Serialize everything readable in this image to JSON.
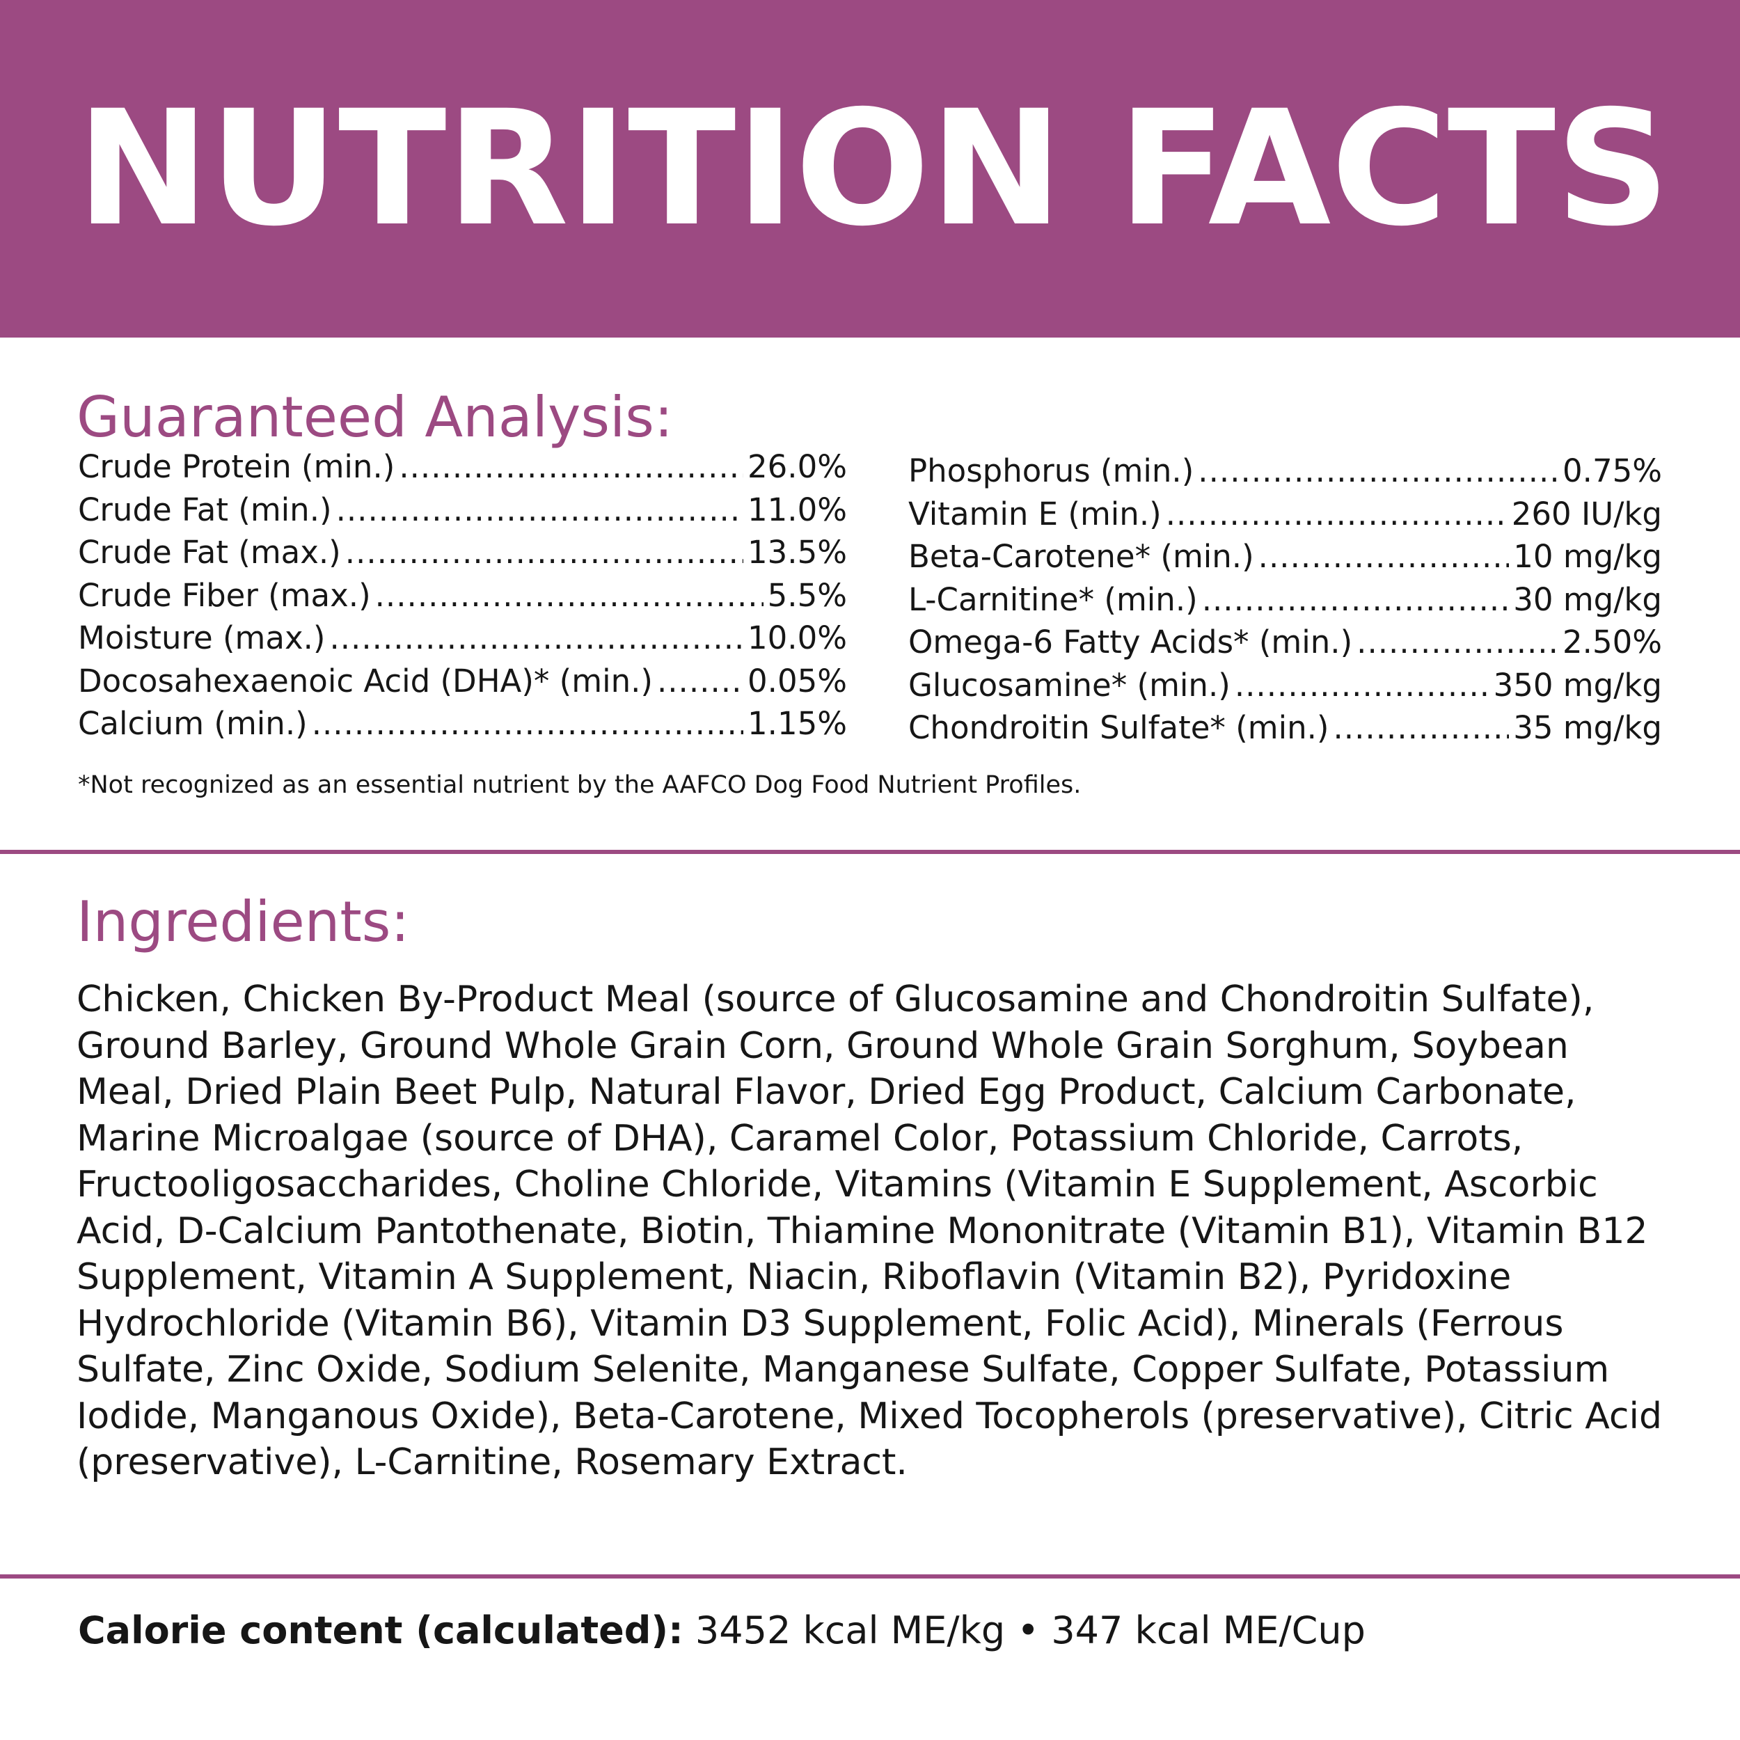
{
  "banner": {
    "title": "NUTRITION FACTS",
    "background_color": "#9c4a82",
    "text_color": "#ffffff"
  },
  "accent_color": "#9c4a82",
  "guaranteed_analysis": {
    "heading": "Guaranteed Analysis:",
    "left_column": [
      {
        "name": "Crude Protein (min.)",
        "value": "26.0%"
      },
      {
        "name": "Crude Fat (min.)",
        "value": "11.0%"
      },
      {
        "name": "Crude Fat (max.)",
        "value": "13.5%"
      },
      {
        "name": "Crude Fiber (max.)",
        "value": "5.5%"
      },
      {
        "name": "Moisture (max.)",
        "value": "10.0%"
      },
      {
        "name": "Docosahexaenoic Acid (DHA)* (min.)",
        "value": "0.05%"
      },
      {
        "name": "Calcium (min.)",
        "value": "1.15%"
      }
    ],
    "right_column": [
      {
        "name": "Phosphorus (min.)",
        "value": "0.75%"
      },
      {
        "name": "Vitamin E (min.)",
        "value": "260 IU/kg"
      },
      {
        "name": "Beta-Carotene* (min.)",
        "value": "10 mg/kg"
      },
      {
        "name": "L-Carnitine* (min.)",
        "value": "30 mg/kg"
      },
      {
        "name": "Omega-6 Fatty Acids* (min.)",
        "value": "2.50%"
      },
      {
        "name": "Glucosamine* (min.)",
        "value": "350 mg/kg"
      },
      {
        "name": "Chondroitin Sulfate* (min.)",
        "value": "35 mg/kg"
      }
    ],
    "footnote": "*Not recognized as an essential nutrient by the AAFCO Dog Food Nutrient Profiles."
  },
  "ingredients": {
    "heading": "Ingredients:",
    "text": "Chicken, Chicken By-Product Meal (source of Glucosamine and Chondroitin Sulfate), Ground Barley, Ground Whole Grain Corn, Ground Whole Grain Sorghum, Soybean Meal, Dried Plain Beet Pulp, Natural Flavor, Dried Egg Product, Calcium Carbonate, Marine Microalgae (source of DHA), Caramel Color, Potassium Chloride, Carrots, Fructooligosaccharides, Choline Chloride, Vitamins (Vitamin E Supplement, Ascorbic Acid, D-Calcium Pantothenate, Biotin, Thiamine Mononitrate (Vitamin B1), Vitamin B12 Supplement, Vitamin A Supplement, Niacin, Riboflavin (Vitamin B2), Pyridoxine Hydrochloride (Vitamin B6), Vitamin D3 Supplement, Folic Acid), Minerals (Ferrous Sulfate, Zinc Oxide, Sodium Selenite, Manganese Sulfate, Copper Sulfate, Potassium Iodide, Manganous Oxide), Beta-Carotene, Mixed Tocopherols (preservative), Citric Acid (preservative), L-Carnitine, Rosemary Extract."
  },
  "calorie_content": {
    "label": "Calorie content (calculated):",
    "value": " 3452 kcal ME/kg • 347 kcal ME/Cup"
  }
}
